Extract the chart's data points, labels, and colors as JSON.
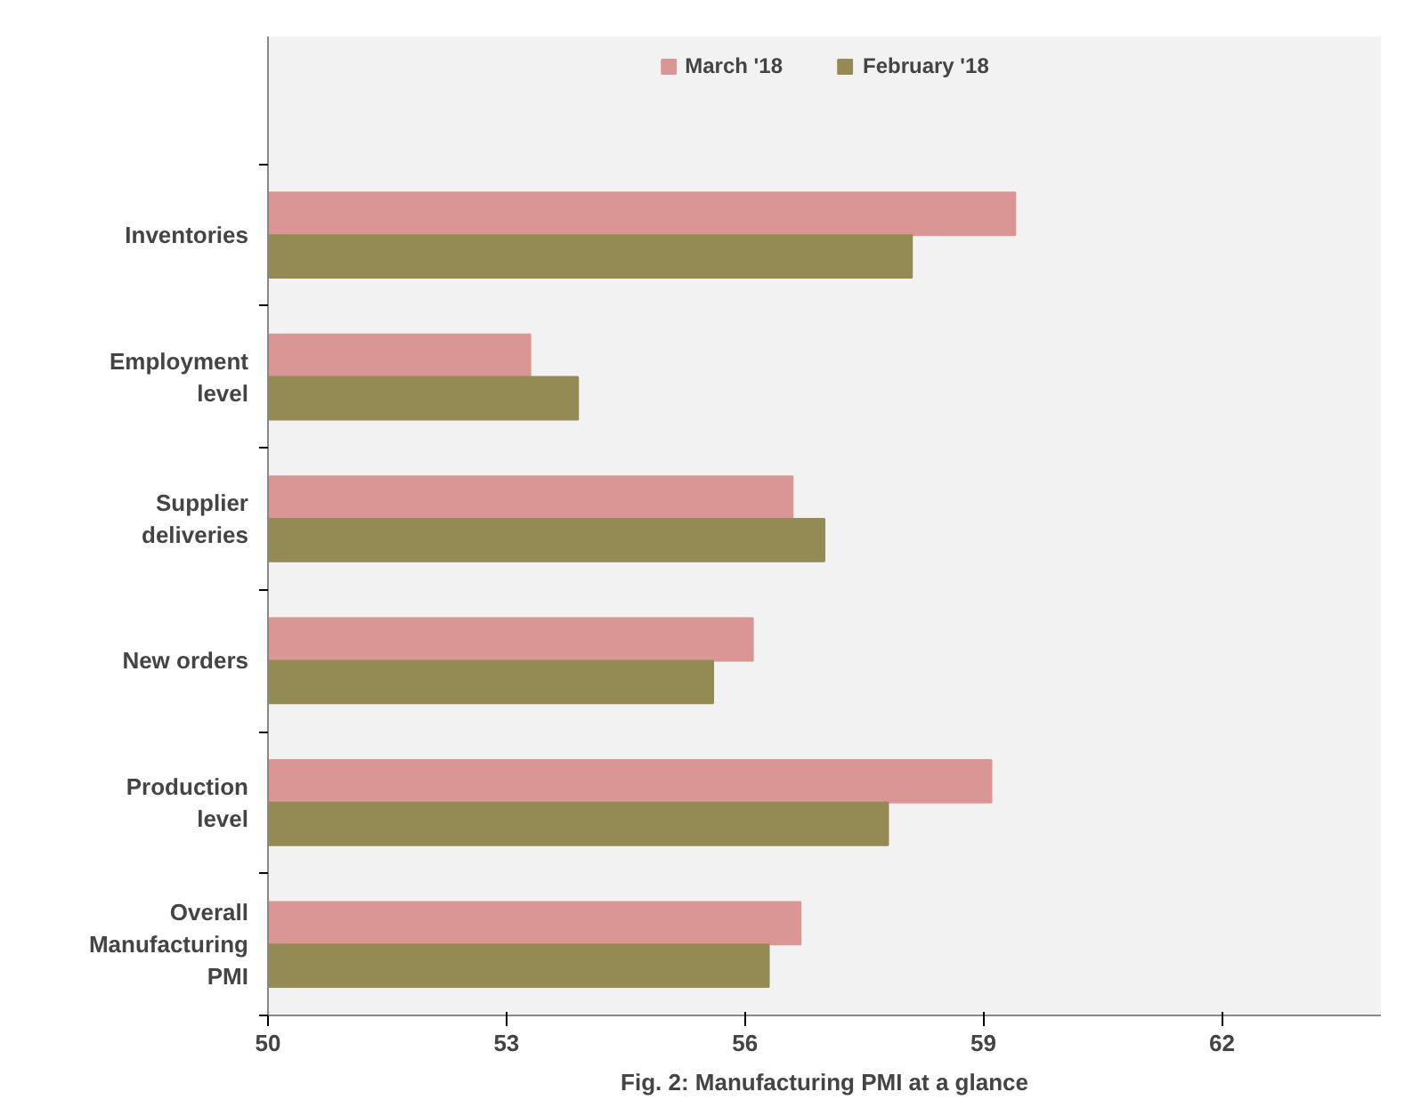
{
  "chart_data": {
    "type": "bar",
    "orientation": "horizontal",
    "title": "Fig. 2: Manufacturing PMI at a glance",
    "categories": [
      "Inventories",
      "Employment level",
      "Supplier deliveries",
      "New orders",
      "Production level",
      "Overall Manufacturing PMI"
    ],
    "series": [
      {
        "name": "March '18",
        "color": "#da9694",
        "values": [
          59.4,
          53.3,
          56.6,
          56.1,
          59.1,
          56.7
        ]
      },
      {
        "name": "February '18",
        "color": "#948a54",
        "values": [
          58.1,
          53.9,
          57.0,
          55.6,
          57.8,
          56.3
        ]
      }
    ],
    "xlim": [
      50,
      64
    ],
    "xticks": [
      50,
      53,
      56,
      59,
      62
    ],
    "grid": false,
    "legend": "top"
  }
}
